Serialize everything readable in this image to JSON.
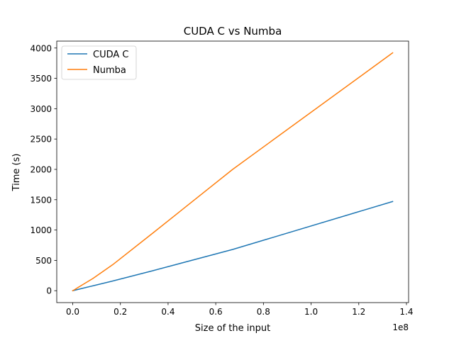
{
  "chart_data": {
    "type": "line",
    "title": "CUDA C vs Numba",
    "xlabel": "Size of the input",
    "ylabel": "Time (s)",
    "x_offset_label": "1e8",
    "xlim": [
      -0.067,
      1.409
    ],
    "ylim": [
      -196,
      4114
    ],
    "x_ticks": [
      0.0,
      0.2,
      0.4,
      0.6,
      0.8,
      1.0,
      1.2,
      1.4
    ],
    "x_tick_labels": [
      "0.0",
      "0.2",
      "0.4",
      "0.6",
      "0.8",
      "1.0",
      "1.2",
      "1.4"
    ],
    "y_ticks": [
      0,
      500,
      1000,
      1500,
      2000,
      2500,
      3000,
      3500,
      4000
    ],
    "y_tick_labels": [
      "0",
      "500",
      "1000",
      "1500",
      "2000",
      "2500",
      "3000",
      "3500",
      "4000"
    ],
    "grid": false,
    "legend_position": "top-left",
    "series": [
      {
        "name": "CUDA C",
        "color": "#1f77b4",
        "x": [
          0.0,
          0.0105,
          0.021,
          0.042,
          0.084,
          0.168,
          0.336,
          0.671,
          1.342
        ],
        "y": [
          0,
          10,
          20,
          40,
          80,
          160,
          330,
          680,
          1470
        ]
      },
      {
        "name": "Numba",
        "color": "#ff7f0e",
        "x": [
          0.0,
          0.0105,
          0.021,
          0.042,
          0.084,
          0.168,
          0.336,
          0.671,
          1.342
        ],
        "y": [
          0,
          25,
          50,
          100,
          200,
          430,
          950,
          2000,
          3920
        ]
      }
    ]
  }
}
